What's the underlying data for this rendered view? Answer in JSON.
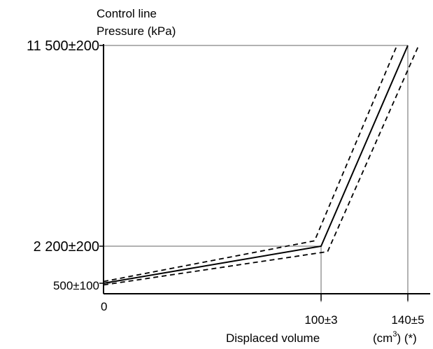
{
  "chart_data": {
    "type": "line",
    "ylabel_lines": [
      "Control line",
      "Pressure (kPa)"
    ],
    "xlabel": "Displaced volume",
    "x_unit": "(cm³) (*)",
    "x_unit_parts": {
      "pre": "(cm",
      "sup": "3",
      "post": ") (*)"
    },
    "x_ticks": [
      {
        "value": 0,
        "label": "0"
      },
      {
        "value": 100,
        "label": "100±3"
      },
      {
        "value": 140,
        "label": "140±5"
      }
    ],
    "y_ticks": [
      {
        "value": 500,
        "label": "500±100"
      },
      {
        "value": 2200,
        "label": "2 200±200"
      },
      {
        "value": 11500,
        "label": "11 500±200"
      }
    ],
    "series": [
      {
        "style": "solid",
        "color": "#000000",
        "points": [
          [
            0,
            500
          ],
          [
            100,
            2200
          ],
          [
            140,
            11500
          ]
        ]
      },
      {
        "style": "dashed",
        "color": "#000000",
        "points": [
          [
            0,
            580
          ],
          [
            97,
            2450
          ],
          [
            135,
            11500
          ]
        ]
      },
      {
        "style": "dashed",
        "color": "#000000",
        "points": [
          [
            0,
            420
          ],
          [
            103,
            1950
          ],
          [
            145,
            11500
          ]
        ]
      }
    ],
    "grid": false
  }
}
